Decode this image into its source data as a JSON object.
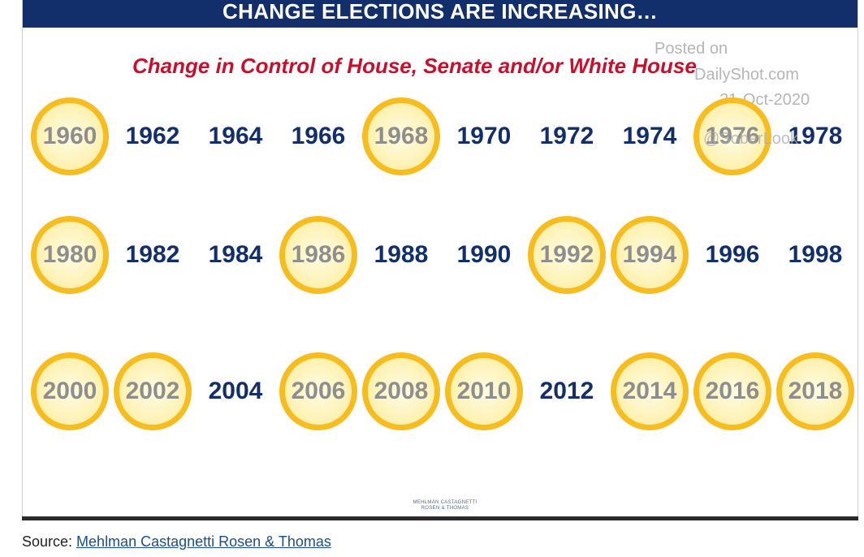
{
  "header": {
    "title": "CHANGE ELECTIONS ARE INCREASING…"
  },
  "subtitle": "Change in Control of House, Senate and/or White House",
  "watermark": {
    "posted": "Posted on",
    "site": "DailyShot.com",
    "date": "21-Oct-2020",
    "handle": "@SoberLook"
  },
  "colors": {
    "header_bg": "#132f6b",
    "subtitle": "#c8102e",
    "year_text": "#132f6b",
    "changed_ring": "#f7bd1e",
    "changed_fill": "#fdf3b8",
    "changed_text": "#8e8e8e"
  },
  "rows": [
    [
      {
        "year": "1960",
        "change": true
      },
      {
        "year": "1962",
        "change": false
      },
      {
        "year": "1964",
        "change": false
      },
      {
        "year": "1966",
        "change": false
      },
      {
        "year": "1968",
        "change": true
      },
      {
        "year": "1970",
        "change": false
      },
      {
        "year": "1972",
        "change": false
      },
      {
        "year": "1974",
        "change": false
      },
      {
        "year": "1976",
        "change": true
      },
      {
        "year": "1978",
        "change": false
      }
    ],
    [
      {
        "year": "1980",
        "change": true
      },
      {
        "year": "1982",
        "change": false
      },
      {
        "year": "1984",
        "change": false
      },
      {
        "year": "1986",
        "change": true
      },
      {
        "year": "1988",
        "change": false
      },
      {
        "year": "1990",
        "change": false
      },
      {
        "year": "1992",
        "change": true
      },
      {
        "year": "1994",
        "change": true
      },
      {
        "year": "1996",
        "change": false
      },
      {
        "year": "1998",
        "change": false
      }
    ],
    [
      {
        "year": "2000",
        "change": true
      },
      {
        "year": "2002",
        "change": true
      },
      {
        "year": "2004",
        "change": false
      },
      {
        "year": "2006",
        "change": true
      },
      {
        "year": "2008",
        "change": true
      },
      {
        "year": "2010",
        "change": true
      },
      {
        "year": "2012",
        "change": false
      },
      {
        "year": "2014",
        "change": true
      },
      {
        "year": "2016",
        "change": true
      },
      {
        "year": "2018",
        "change": true
      }
    ]
  ],
  "logo": {
    "line1": "Mehlman Castagnetti",
    "line2": "Rosen & Thomas"
  },
  "source": {
    "prefix": "Source: ",
    "link_text": "Mehlman Castagnetti Rosen & Thomas"
  }
}
